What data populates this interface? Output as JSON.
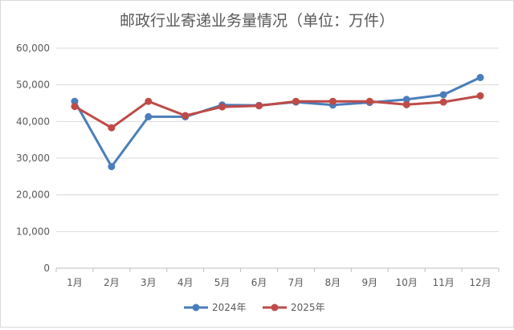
{
  "chart_data": {
    "type": "line",
    "title": "邮政行业寄递业务量情况（单位：万件）",
    "categories": [
      "1月",
      "2月",
      "3月",
      "4月",
      "5月",
      "6月",
      "7月",
      "8月",
      "9月",
      "10月",
      "11月",
      "12月"
    ],
    "ylim": [
      0,
      60000
    ],
    "yticks": [
      0,
      10000,
      20000,
      30000,
      40000,
      50000,
      60000
    ],
    "ytick_labels": [
      "0",
      "10,000",
      "20,000",
      "30,000",
      "40,000",
      "50,000",
      "60,000"
    ],
    "grid": true,
    "legend_position": "bottom",
    "series": [
      {
        "name": "2024年",
        "color": "#4a7ebb",
        "values": [
          45500,
          27700,
          41300,
          41300,
          44500,
          44400,
          45300,
          44500,
          45200,
          46000,
          47300,
          52000
        ]
      },
      {
        "name": "2025年",
        "color": "#be4b48",
        "values": [
          44100,
          38300,
          45500,
          41600,
          44000,
          44300,
          45500,
          45500,
          45500,
          44600,
          45300,
          47000
        ]
      }
    ]
  }
}
